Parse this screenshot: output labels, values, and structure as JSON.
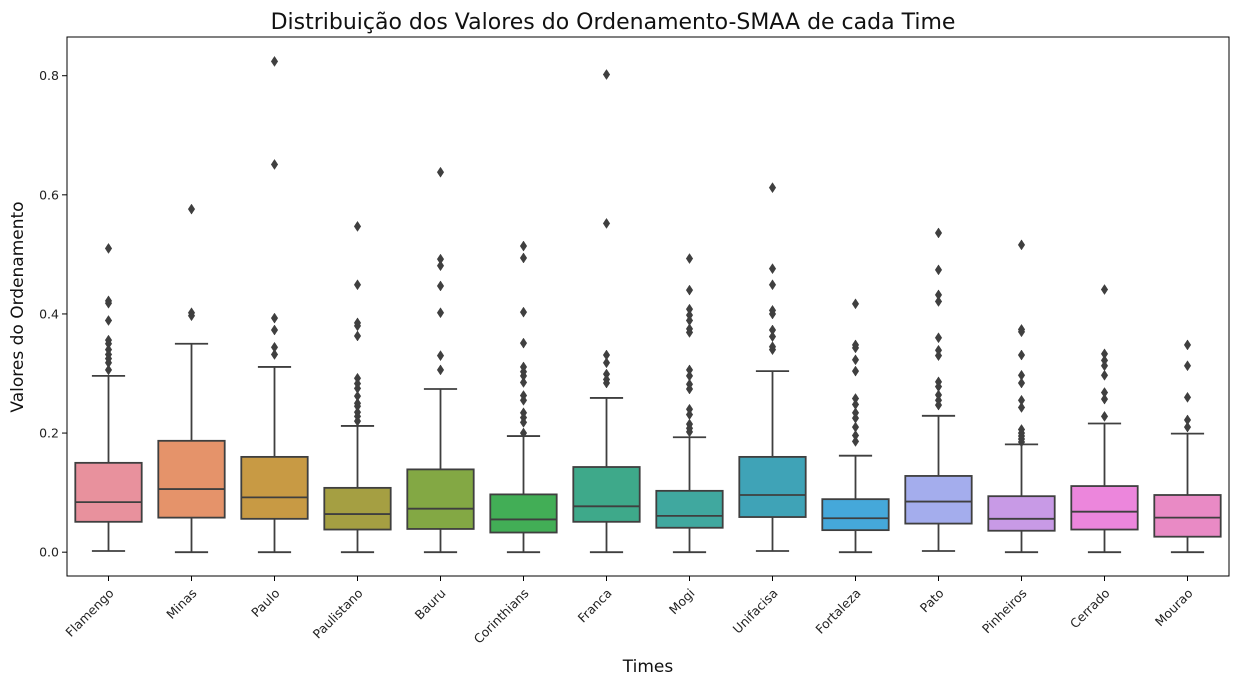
{
  "chart_data": {
    "type": "box",
    "title": "Distribuição dos Valores do Ordenamento-SMAA de cada Time",
    "xlabel": "Times",
    "ylabel": "Valores do Ordenamento",
    "ylim": [
      -0.04,
      0.865
    ],
    "yticks": [
      0.0,
      0.2,
      0.4,
      0.6,
      0.8
    ],
    "ytick_labels": [
      "0.0",
      "0.2",
      "0.4",
      "0.6",
      "0.8"
    ],
    "grid": false,
    "categories": [
      "Flamengo",
      "Minas",
      "Paulo",
      "Paulistano",
      "Bauru",
      "Corinthians",
      "Franca",
      "Mogi",
      "Unifacisa",
      "Fortaleza",
      "Pato",
      "Pinheiros",
      "Cerrado",
      "Mourao"
    ],
    "boxes": [
      {
        "name": "Flamengo",
        "color": "#e8919d",
        "whislo": 0.002,
        "q1": 0.051,
        "med": 0.084,
        "q3": 0.15,
        "whishi": 0.296,
        "fliers": [
          0.51,
          0.422,
          0.418,
          0.389,
          0.356,
          0.35,
          0.34,
          0.332,
          0.325,
          0.318,
          0.306
        ]
      },
      {
        "name": "Minas",
        "color": "#e5936a",
        "whislo": 0.0,
        "q1": 0.058,
        "med": 0.106,
        "q3": 0.187,
        "whishi": 0.35,
        "fliers": [
          0.576,
          0.402,
          0.397
        ]
      },
      {
        "name": "Paulo",
        "color": "#c89a44",
        "whislo": 0.0,
        "q1": 0.056,
        "med": 0.092,
        "q3": 0.16,
        "whishi": 0.311,
        "fliers": [
          0.824,
          0.651,
          0.393,
          0.373,
          0.344,
          0.332
        ]
      },
      {
        "name": "Paulistano",
        "color": "#a59f42",
        "whislo": 0.0,
        "q1": 0.038,
        "med": 0.064,
        "q3": 0.108,
        "whishi": 0.212,
        "fliers": [
          0.547,
          0.449,
          0.385,
          0.38,
          0.363,
          0.292,
          0.283,
          0.275,
          0.262,
          0.25,
          0.245,
          0.235,
          0.228,
          0.22
        ]
      },
      {
        "name": "Bauru",
        "color": "#83a844",
        "whislo": 0.0,
        "q1": 0.039,
        "med": 0.073,
        "q3": 0.139,
        "whishi": 0.274,
        "fliers": [
          0.638,
          0.492,
          0.481,
          0.447,
          0.402,
          0.33,
          0.306
        ]
      },
      {
        "name": "Corinthians",
        "color": "#42ae56",
        "whislo": 0.0,
        "q1": 0.033,
        "med": 0.055,
        "q3": 0.097,
        "whishi": 0.195,
        "fliers": [
          0.514,
          0.494,
          0.403,
          0.351,
          0.311,
          0.303,
          0.296,
          0.285,
          0.263,
          0.255,
          0.234,
          0.226,
          0.218,
          0.2
        ]
      },
      {
        "name": "Franca",
        "color": "#3ea98a",
        "whislo": 0.0,
        "q1": 0.051,
        "med": 0.077,
        "q3": 0.143,
        "whishi": 0.259,
        "fliers": [
          0.802,
          0.552,
          0.331,
          0.318,
          0.299,
          0.29,
          0.284
        ]
      },
      {
        "name": "Mogi",
        "color": "#40a89f",
        "whislo": 0.0,
        "q1": 0.041,
        "med": 0.061,
        "q3": 0.103,
        "whishi": 0.193,
        "fliers": [
          0.493,
          0.44,
          0.408,
          0.398,
          0.389,
          0.375,
          0.369,
          0.306,
          0.296,
          0.282,
          0.274,
          0.24,
          0.231,
          0.215,
          0.208,
          0.202
        ]
      },
      {
        "name": "Unifacisa",
        "color": "#3fa3b7",
        "whislo": 0.002,
        "q1": 0.059,
        "med": 0.096,
        "q3": 0.16,
        "whishi": 0.304,
        "fliers": [
          0.612,
          0.476,
          0.449,
          0.406,
          0.4,
          0.373,
          0.362,
          0.345,
          0.34
        ]
      },
      {
        "name": "Fortaleza",
        "color": "#45a8da",
        "whislo": 0.0,
        "q1": 0.037,
        "med": 0.057,
        "q3": 0.089,
        "whishi": 0.162,
        "fliers": [
          0.417,
          0.348,
          0.343,
          0.323,
          0.304,
          0.258,
          0.248,
          0.234,
          0.225,
          0.21,
          0.196,
          0.186
        ]
      },
      {
        "name": "Pato",
        "color": "#a4aded",
        "whislo": 0.002,
        "q1": 0.048,
        "med": 0.085,
        "q3": 0.128,
        "whishi": 0.229,
        "fliers": [
          0.536,
          0.474,
          0.432,
          0.421,
          0.36,
          0.339,
          0.33,
          0.286,
          0.278,
          0.264,
          0.255,
          0.247
        ]
      },
      {
        "name": "Pinheiros",
        "color": "#c89ae6",
        "whislo": 0.0,
        "q1": 0.036,
        "med": 0.056,
        "q3": 0.094,
        "whishi": 0.181,
        "fliers": [
          0.516,
          0.374,
          0.37,
          0.331,
          0.297,
          0.284,
          0.255,
          0.243,
          0.206,
          0.2,
          0.195,
          0.19,
          0.185
        ]
      },
      {
        "name": "Cerrado",
        "color": "#ec86dc",
        "whislo": 0.0,
        "q1": 0.038,
        "med": 0.068,
        "q3": 0.111,
        "whishi": 0.216,
        "fliers": [
          0.441,
          0.333,
          0.322,
          0.313,
          0.297,
          0.268,
          0.257,
          0.228
        ]
      },
      {
        "name": "Mourao",
        "color": "#e98ac5",
        "whislo": 0.0,
        "q1": 0.026,
        "med": 0.058,
        "q3": 0.096,
        "whishi": 0.199,
        "fliers": [
          0.348,
          0.313,
          0.26,
          0.222,
          0.21
        ]
      }
    ]
  }
}
